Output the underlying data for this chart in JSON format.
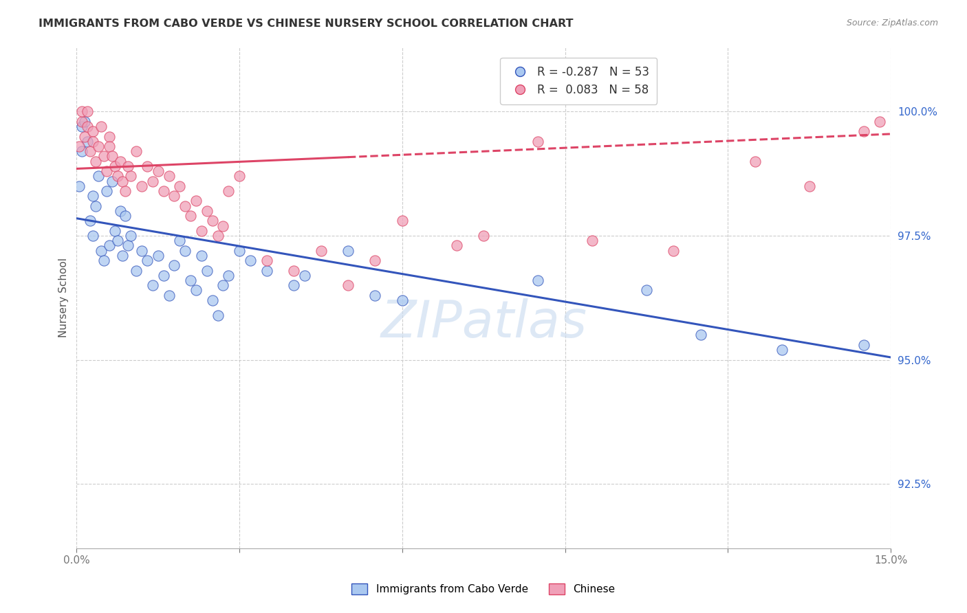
{
  "title": "IMMIGRANTS FROM CABO VERDE VS CHINESE NURSERY SCHOOL CORRELATION CHART",
  "source": "Source: ZipAtlas.com",
  "ylabel": "Nursery School",
  "y_ticks": [
    92.5,
    95.0,
    97.5,
    100.0
  ],
  "y_tick_labels": [
    "92.5%",
    "95.0%",
    "97.5%",
    "100.0%"
  ],
  "x_range": [
    0.0,
    15.0
  ],
  "y_range": [
    91.2,
    101.3
  ],
  "watermark": "ZIPatlas",
  "legend_blue_r": "R = -0.287",
  "legend_blue_n": "N = 53",
  "legend_pink_r": "R =  0.083",
  "legend_pink_n": "N = 58",
  "legend_label_blue": "Immigrants from Cabo Verde",
  "legend_label_pink": "Chinese",
  "blue_color": "#aac8f0",
  "pink_color": "#f0a0b8",
  "blue_line_color": "#3355bb",
  "pink_line_color": "#dd4466",
  "cabo_verde_x": [
    0.05,
    0.1,
    0.1,
    0.15,
    0.2,
    0.25,
    0.3,
    0.3,
    0.35,
    0.4,
    0.45,
    0.5,
    0.55,
    0.6,
    0.65,
    0.7,
    0.75,
    0.8,
    0.85,
    0.9,
    0.95,
    1.0,
    1.1,
    1.2,
    1.3,
    1.4,
    1.5,
    1.6,
    1.7,
    1.8,
    1.9,
    2.0,
    2.1,
    2.2,
    2.3,
    2.4,
    2.5,
    2.6,
    2.7,
    2.8,
    3.0,
    3.2,
    3.5,
    4.0,
    4.2,
    5.0,
    5.5,
    6.0,
    8.5,
    10.5,
    11.5,
    13.0,
    14.5
  ],
  "cabo_verde_y": [
    98.5,
    99.7,
    99.2,
    99.8,
    99.4,
    97.8,
    97.5,
    98.3,
    98.1,
    98.7,
    97.2,
    97.0,
    98.4,
    97.3,
    98.6,
    97.6,
    97.4,
    98.0,
    97.1,
    97.9,
    97.3,
    97.5,
    96.8,
    97.2,
    97.0,
    96.5,
    97.1,
    96.7,
    96.3,
    96.9,
    97.4,
    97.2,
    96.6,
    96.4,
    97.1,
    96.8,
    96.2,
    95.9,
    96.5,
    96.7,
    97.2,
    97.0,
    96.8,
    96.5,
    96.7,
    97.2,
    96.3,
    96.2,
    96.6,
    96.4,
    95.5,
    95.2,
    95.3
  ],
  "chinese_x": [
    0.05,
    0.1,
    0.1,
    0.15,
    0.2,
    0.2,
    0.25,
    0.3,
    0.3,
    0.35,
    0.4,
    0.45,
    0.5,
    0.55,
    0.6,
    0.6,
    0.65,
    0.7,
    0.75,
    0.8,
    0.85,
    0.9,
    0.95,
    1.0,
    1.1,
    1.2,
    1.3,
    1.4,
    1.5,
    1.6,
    1.7,
    1.8,
    1.9,
    2.0,
    2.1,
    2.2,
    2.3,
    2.4,
    2.5,
    2.6,
    2.7,
    2.8,
    3.0,
    3.5,
    4.0,
    4.5,
    5.0,
    5.5,
    6.0,
    7.0,
    7.5,
    8.5,
    9.5,
    11.0,
    12.5,
    13.5,
    14.5,
    14.8
  ],
  "chinese_y": [
    99.3,
    99.8,
    100.0,
    99.5,
    99.7,
    100.0,
    99.2,
    99.6,
    99.4,
    99.0,
    99.3,
    99.7,
    99.1,
    98.8,
    99.5,
    99.3,
    99.1,
    98.9,
    98.7,
    99.0,
    98.6,
    98.4,
    98.9,
    98.7,
    99.2,
    98.5,
    98.9,
    98.6,
    98.8,
    98.4,
    98.7,
    98.3,
    98.5,
    98.1,
    97.9,
    98.2,
    97.6,
    98.0,
    97.8,
    97.5,
    97.7,
    98.4,
    98.7,
    97.0,
    96.8,
    97.2,
    96.5,
    97.0,
    97.8,
    97.3,
    97.5,
    99.4,
    97.4,
    97.2,
    99.0,
    98.5,
    99.6,
    99.8
  ],
  "blue_trend_x0": 0.0,
  "blue_trend_y0": 97.85,
  "blue_trend_x1": 15.0,
  "blue_trend_y1": 95.05,
  "pink_trend_x0": 0.0,
  "pink_trend_y0": 98.85,
  "pink_trend_x1": 15.0,
  "pink_trend_y1": 99.55
}
